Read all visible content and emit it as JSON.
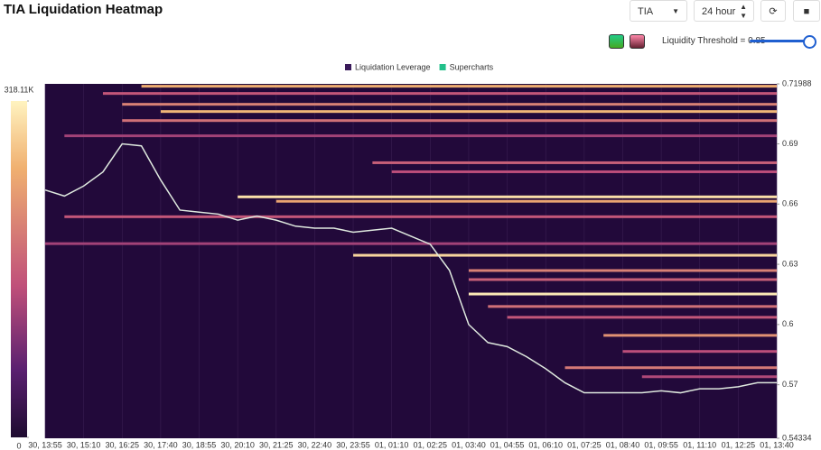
{
  "header": {
    "title": "TIA Liquidation Heatmap",
    "symbol": "TIA",
    "interval": "24 hour",
    "threshold_label": "Liquidity Threshold = 0.85"
  },
  "chart_data": {
    "type": "heatmap",
    "categories": [
      "30, 13:55",
      null,
      "30, 15:10",
      null,
      "30, 16:25",
      null,
      "30, 17:40",
      null,
      "30, 18:55",
      null,
      "30, 20:10",
      null,
      "30, 21:25",
      null,
      "30, 22:40",
      null,
      "30, 23:55",
      null,
      "01, 01:10",
      null,
      "01, 02:25",
      null,
      "01, 03:40",
      null,
      "01, 04:55",
      null,
      "01, 06:10",
      null,
      "01, 07:25",
      null,
      "01, 08:40",
      null,
      "01, 09:55",
      null,
      "01, 11:10",
      null,
      "01, 12:25",
      null,
      "01, 13:40"
    ],
    "series": [
      {
        "name": "Supercharts",
        "color": "#22c08a",
        "line_color": "#dfe9df",
        "values": [
          0.667,
          0.664,
          0.669,
          0.676,
          0.69,
          0.689,
          0.672,
          0.657,
          0.656,
          0.655,
          0.652,
          0.654,
          0.652,
          0.649,
          0.648,
          0.648,
          0.646,
          0.647,
          0.648,
          0.644,
          0.64,
          0.627,
          0.6,
          0.591,
          0.589,
          0.584,
          0.578,
          0.571,
          0.566,
          0.566,
          0.566,
          0.566,
          0.567,
          0.566,
          0.568,
          0.568,
          0.569,
          0.571,
          0.571
        ]
      }
    ],
    "bands_name": "Liquidation Leverage",
    "bands_color": "#3a1a5a",
    "bands": [
      {
        "price": 0.7187,
        "value": 250000,
        "from": 5
      },
      {
        "price": 0.7151,
        "value": 150000,
        "from": 3
      },
      {
        "price": 0.7097,
        "value": 200000,
        "from": 4
      },
      {
        "price": 0.7061,
        "value": 260000,
        "from": 6
      },
      {
        "price": 0.7016,
        "value": 180000,
        "from": 4
      },
      {
        "price": 0.694,
        "value": 120000,
        "from": 1
      },
      {
        "price": 0.6806,
        "value": 160000,
        "from": 17
      },
      {
        "price": 0.6761,
        "value": 140000,
        "from": 18
      },
      {
        "price": 0.6636,
        "value": 300000,
        "from": 10
      },
      {
        "price": 0.6614,
        "value": 240000,
        "from": 12
      },
      {
        "price": 0.6537,
        "value": 150000,
        "from": 1
      },
      {
        "price": 0.6403,
        "value": 120000,
        "from": 0
      },
      {
        "price": 0.6345,
        "value": 290000,
        "from": 16
      },
      {
        "price": 0.6269,
        "value": 200000,
        "from": 22
      },
      {
        "price": 0.6224,
        "value": 160000,
        "from": 22
      },
      {
        "price": 0.6152,
        "value": 310000,
        "from": 22
      },
      {
        "price": 0.609,
        "value": 180000,
        "from": 23
      },
      {
        "price": 0.6036,
        "value": 150000,
        "from": 24
      },
      {
        "price": 0.5946,
        "value": 220000,
        "from": 29
      },
      {
        "price": 0.5866,
        "value": 140000,
        "from": 30
      },
      {
        "price": 0.5785,
        "value": 190000,
        "from": 27
      },
      {
        "price": 0.574,
        "value": 130000,
        "from": 31
      }
    ],
    "ylim": [
      0.54334,
      0.71988
    ],
    "yticks": [
      0.54334,
      0.57,
      0.6,
      0.63,
      0.66,
      0.69,
      0.71988
    ],
    "colorbar_lim": [
      0,
      318110
    ],
    "colorbar_ticks": [
      {
        "value": 318110,
        "label": "318.11K"
      },
      0
    ],
    "grid": true,
    "background": "#22093a"
  }
}
